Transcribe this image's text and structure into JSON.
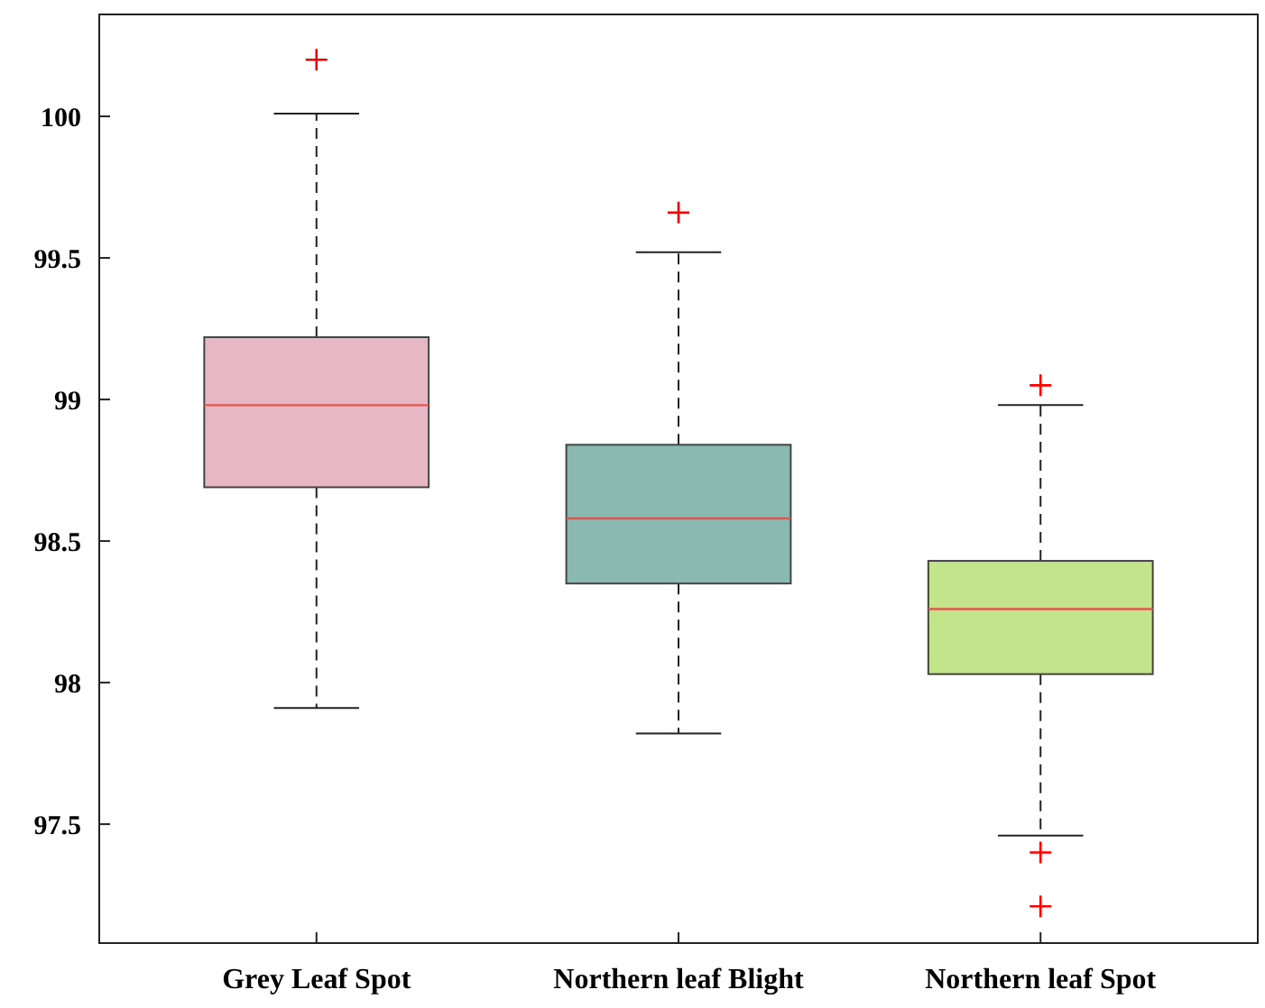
{
  "chart_data": {
    "type": "box",
    "categories": [
      "Grey Leaf Spot",
      "Northern leaf Blight",
      "Northern leaf Spot"
    ],
    "boxes": [
      {
        "low": 97.91,
        "q1": 98.69,
        "median": 98.98,
        "q3": 99.22,
        "high": 100.01,
        "outliers": [
          100.2
        ]
      },
      {
        "low": 97.82,
        "q1": 98.35,
        "median": 98.58,
        "q3": 98.84,
        "high": 99.52,
        "outliers": [
          99.66
        ]
      },
      {
        "low": 97.46,
        "q1": 98.03,
        "median": 98.26,
        "q3": 98.43,
        "high": 98.98,
        "outliers": [
          99.05,
          97.4,
          97.21
        ]
      }
    ],
    "colors": [
      "#e8b7c5",
      "#8ab9b1",
      "#c4e48b"
    ],
    "ylim": [
      97.08,
      100.36
    ],
    "yticks": [
      97.5,
      98,
      98.5,
      99,
      99.5,
      100
    ],
    "grid": false
  }
}
